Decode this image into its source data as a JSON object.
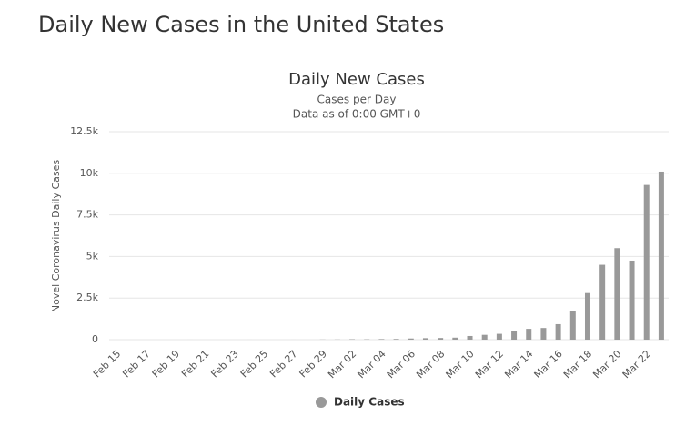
{
  "page_title": "Daily New Cases in the United States",
  "chart_data": {
    "type": "bar",
    "title": "Daily New Cases",
    "subtitle": [
      "Cases per Day",
      "Data as of 0:00 GMT+0"
    ],
    "y_label": "Novel Coronavirus Daily Cases",
    "categories": [
      "Feb 15",
      null,
      "Feb 17",
      null,
      "Feb 19",
      null,
      "Feb 21",
      null,
      "Feb 23",
      null,
      "Feb 25",
      null,
      "Feb 27",
      null,
      "Feb 29",
      null,
      "Mar 02",
      null,
      "Mar 04",
      null,
      "Mar 06",
      null,
      "Mar 08",
      null,
      "Mar 10",
      null,
      "Mar 12",
      null,
      "Mar 14",
      null,
      "Mar 16",
      null,
      "Mar 18",
      null,
      "Mar 20",
      null,
      "Mar 22",
      null
    ],
    "series": [
      {
        "name": "Daily Cases",
        "color": "#999999",
        "values": [
          0,
          0,
          0,
          0,
          0,
          1,
          0,
          0,
          0,
          1,
          0,
          0,
          1,
          0,
          9,
          10,
          24,
          20,
          33,
          40,
          70,
          90,
          100,
          120,
          220,
          290,
          350,
          500,
          650,
          700,
          930,
          1700,
          2800,
          4500,
          5500,
          4750,
          9300,
          10100
        ]
      }
    ],
    "ylim": [
      0,
      12500
    ],
    "yticks": [
      0,
      {
        "value": 2500,
        "label": "2.5k"
      },
      {
        "value": 5000,
        "label": "5k"
      },
      {
        "value": 7500,
        "label": "7.5k"
      },
      {
        "value": 10000,
        "label": "10k"
      },
      {
        "value": 12500,
        "label": "12.5k"
      }
    ],
    "grid": true,
    "legend": "bottom"
  }
}
